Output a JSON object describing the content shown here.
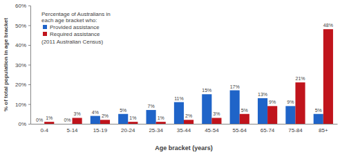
{
  "chart_data": {
    "type": "bar",
    "annotations": [
      "Percentage of Australians in",
      "each age bracket who:",
      "(2011 Australian Census)"
    ],
    "x_label": "Age bracket (years)",
    "y_label": "% of total population in age bracket",
    "categories": [
      "0-4",
      "5-14",
      "15-19",
      "20-24",
      "25-34",
      "35-44",
      "45-54",
      "55-64",
      "65-74",
      "75-84",
      "85+"
    ],
    "series": [
      {
        "name": "Provided assistance",
        "color": "#1f64c8",
        "values": [
          0,
          0,
          4,
          5,
          7,
          11,
          15,
          17,
          13,
          9,
          5
        ],
        "value_labels": [
          "0%",
          "0%",
          "4%",
          "5%",
          "7%",
          "11%",
          "15%",
          "17%",
          "13%",
          "9%",
          "5%"
        ]
      },
      {
        "name": "Required assistance",
        "color": "#c0141c",
        "values": [
          1,
          3,
          2,
          1,
          1,
          2,
          3,
          5,
          9,
          21,
          48
        ],
        "value_labels": [
          "1%",
          "3%",
          "2%",
          "1%",
          "1%",
          "2%",
          "3%",
          "5%",
          "9%",
          "21%",
          "48%"
        ]
      }
    ],
    "ylim": [
      0,
      60
    ],
    "yticks": [
      {
        "value": 0,
        "label": "0%"
      },
      {
        "value": 10,
        "label": "10%"
      },
      {
        "value": 20,
        "label": "20%"
      },
      {
        "value": 30,
        "label": "30%"
      },
      {
        "value": 40,
        "label": "40%"
      },
      {
        "value": 50,
        "label": "50%"
      },
      {
        "value": 60,
        "label": "60%"
      }
    ],
    "grid": false,
    "legend": "upper left",
    "data_labels": true
  }
}
